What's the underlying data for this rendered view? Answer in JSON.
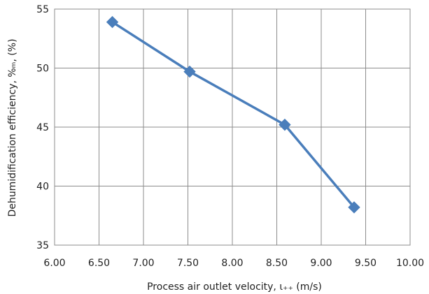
{
  "chart_data": {
    "type": "line",
    "title": "",
    "xlabel": "Process air outlet velocity, ɩ₊₊ (m/s)",
    "ylabel": "Dehumidification efficiency, %ₘ, (%)",
    "xlim": [
      6.0,
      10.0
    ],
    "ylim": [
      35,
      55
    ],
    "x_ticks": [
      "6.00",
      "6.50",
      "7.00",
      "7.50",
      "8.00",
      "8.50",
      "9.00",
      "9.50",
      "10.00"
    ],
    "y_ticks": [
      "35",
      "40",
      "45",
      "50",
      "55"
    ],
    "grid": true,
    "legend": "none",
    "series": [
      {
        "x": [
          6.65,
          7.52,
          8.59,
          9.37
        ],
        "y": [
          53.9,
          49.7,
          45.2,
          38.2
        ],
        "color": "#4a7ebb",
        "marker": "diamond"
      }
    ]
  }
}
